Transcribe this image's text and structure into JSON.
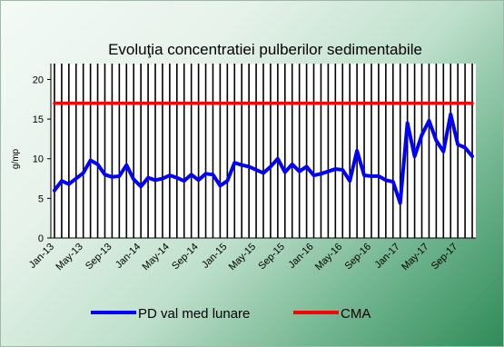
{
  "chart_data": {
    "type": "line",
    "title": "Evoluţia concentratiei  pulberilor sedimentabile",
    "ylabel": "g/mp",
    "xlabel": "",
    "ylim": [
      0,
      22
    ],
    "yticks": [
      0,
      5,
      10,
      15,
      20
    ],
    "x_tick_labels": [
      "Jan-13",
      "May-13",
      "Sep-13",
      "Jan-14",
      "May-14",
      "Sep-14",
      "Jan-15",
      "May-15",
      "Sep-15",
      "Jan-16",
      "May-16",
      "Sep-16",
      "Jan-17",
      "May-17",
      "Sep-17"
    ],
    "grid": "vertical",
    "legend_position": "bottom",
    "series": [
      {
        "name": "PD val med lunare",
        "color": "#0000ff",
        "values": [
          6.0,
          7.2,
          6.8,
          7.5,
          8.2,
          9.8,
          9.3,
          8.0,
          7.7,
          7.8,
          9.2,
          7.4,
          6.5,
          7.6,
          7.3,
          7.5,
          7.9,
          7.6,
          7.2,
          8.0,
          7.3,
          8.1,
          8.0,
          6.6,
          7.2,
          9.5,
          9.2,
          9.0,
          8.6,
          8.2,
          9.0,
          10.0,
          8.3,
          9.3,
          8.4,
          9.0,
          7.9,
          8.1,
          8.4,
          8.7,
          8.6,
          7.2,
          11.0,
          7.9,
          7.8,
          7.8,
          7.3,
          7.1,
          4.4,
          14.5,
          10.3,
          13.0,
          14.8,
          12.3,
          10.9,
          15.6,
          11.8,
          11.4,
          10.3
        ]
      },
      {
        "name": "CMA",
        "color": "#ff0000",
        "values": [
          17,
          17,
          17,
          17,
          17,
          17,
          17,
          17,
          17,
          17,
          17,
          17,
          17,
          17,
          17,
          17,
          17,
          17,
          17,
          17,
          17,
          17,
          17,
          17,
          17,
          17,
          17,
          17,
          17,
          17,
          17,
          17,
          17,
          17,
          17,
          17,
          17,
          17,
          17,
          17,
          17,
          17,
          17,
          17,
          17,
          17,
          17,
          17,
          17,
          17,
          17,
          17,
          17,
          17,
          17,
          17,
          17,
          17,
          17
        ]
      }
    ]
  }
}
